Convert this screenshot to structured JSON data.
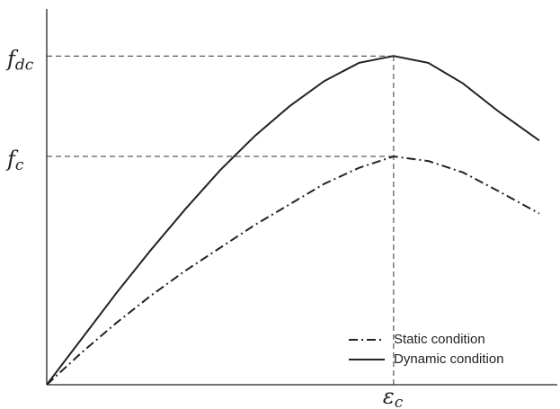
{
  "chart_data": {
    "type": "line",
    "x": [
      0,
      0.1,
      0.2,
      0.3,
      0.4,
      0.5,
      0.6,
      0.7,
      0.8,
      0.9,
      1.0,
      1.1,
      1.2,
      1.3,
      1.42
    ],
    "series": [
      {
        "name": "Static condition",
        "color": "#222222",
        "dash": "dashdot",
        "values": [
          0,
          0.14,
          0.27,
          0.39,
          0.5,
          0.6,
          0.7,
          0.79,
          0.88,
          0.95,
          1.0,
          0.98,
          0.93,
          0.85,
          0.75
        ]
      },
      {
        "name": "Dynamic condition",
        "color": "#222222",
        "dash": "solid",
        "values": [
          0,
          0.2,
          0.4,
          0.59,
          0.77,
          0.94,
          1.09,
          1.22,
          1.33,
          1.41,
          1.44,
          1.41,
          1.32,
          1.2,
          1.07
        ]
      }
    ],
    "xlim": [
      0,
      1.472
    ],
    "ylim": [
      0,
      1.646
    ],
    "xticks": [
      {
        "value": 1.0,
        "label": "ε",
        "subscript": "c"
      }
    ],
    "yticks": [
      {
        "value": 1.44,
        "label": "f",
        "subscript": "dc"
      },
      {
        "value": 1.0,
        "label": "f",
        "subscript": "c"
      }
    ],
    "legend": "lower right"
  }
}
